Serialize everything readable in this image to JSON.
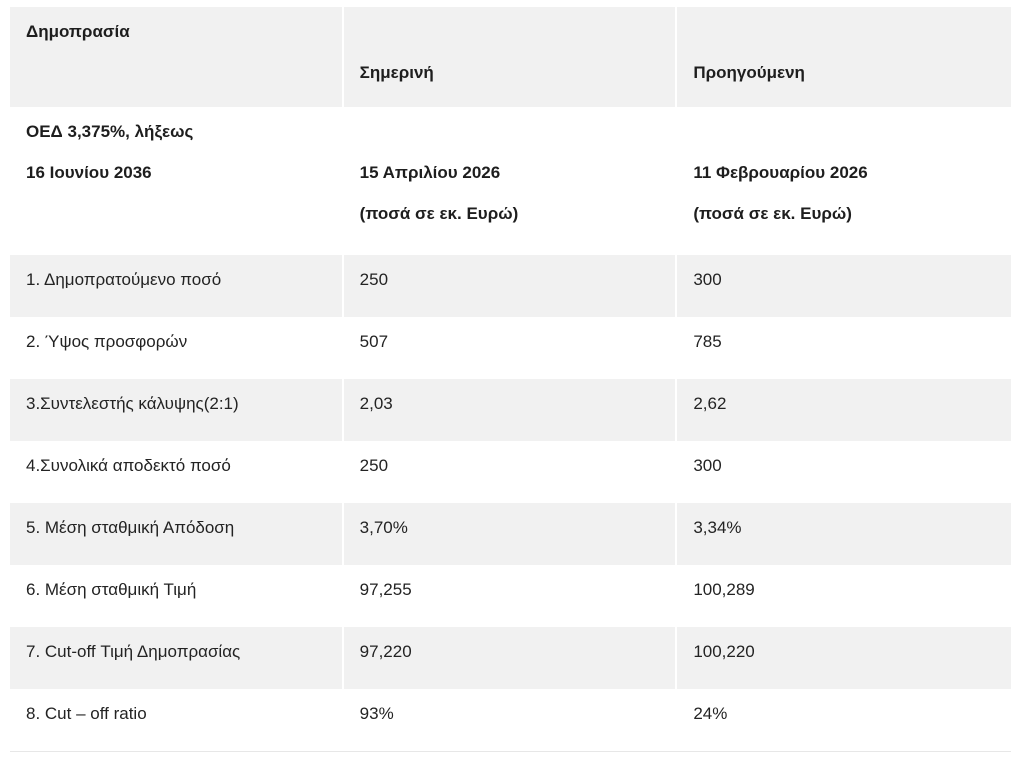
{
  "table": {
    "header": {
      "col1": "Δημοπρασία",
      "col2": "Σημερινή",
      "col3": "Προηγούμενη"
    },
    "info_row": {
      "bond_line1": "ΟΕΔ 3,375%, λήξεως",
      "bond_line2": "16 Ιουνίου 2036",
      "current_date": "15 Απριλίου 2026",
      "current_note": "(ποσά σε εκ. Ευρώ)",
      "previous_date": "11 Φεβρουαρίου 2026",
      "previous_note": "(ποσά σε εκ. Ευρώ)"
    },
    "rows": [
      {
        "label": "1. Δημοπρατούμενο ποσό",
        "current": "250",
        "previous": "300"
      },
      {
        "label": "2. Ύψος προσφορών",
        "current": "507",
        "previous": "785"
      },
      {
        "label": "3.Συντελεστής κάλυψης(2:1)",
        "current": "2,03",
        "previous": "2,62"
      },
      {
        "label": "4.Συνολικά αποδεκτό ποσό",
        "current": "250",
        "previous": "300"
      },
      {
        "label": "5. Μέση σταθμική Απόδοση",
        "current": "3,70%",
        "previous": "3,34%"
      },
      {
        "label": "6. Μέση σταθμική Τιμή",
        "current": "97,255",
        "previous": "100,289"
      },
      {
        "label": "7. Cut-off Τιμή Δημοπρασίας",
        "current": "97,220",
        "previous": "100,220"
      },
      {
        "label": "8. Cut – off ratio",
        "current": "93%",
        "previous": "24%"
      }
    ]
  },
  "colors": {
    "stripe": "#f1f1f1",
    "row_white": "#ffffff",
    "table_border": "#e7e7e7",
    "text": "#232323"
  }
}
